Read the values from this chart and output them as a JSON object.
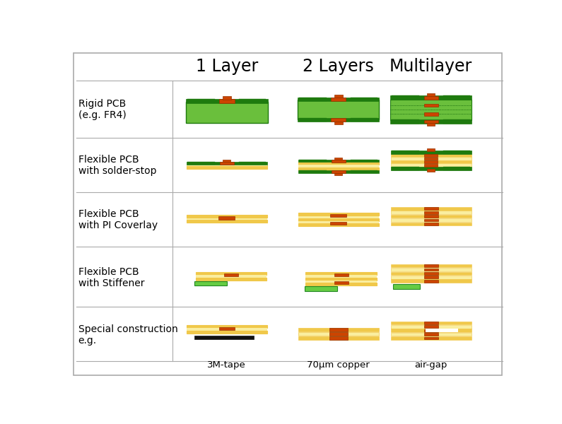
{
  "col_headers": [
    "1 Layer",
    "2 Layers",
    "Multilayer"
  ],
  "row_labels": [
    "Rigid PCB\n(e.g. FR4)",
    "Flexible PCB\nwith solder-stop",
    "Flexible PCB\nwith PI Coverlay",
    "Flexible PCB\nwith Stiffener",
    "Special construction\ne.g."
  ],
  "bottom_labels": [
    "3M-tape",
    "70μm copper",
    "air-gap"
  ],
  "colors": {
    "dark_green": "#1e7a0e",
    "light_green": "#6abf3c",
    "bright_green": "#90ee60",
    "copper": "#cc4400",
    "copper_dark": "#993300",
    "yellow": "#f0c84a",
    "light_yellow": "#faeea0",
    "tan": "#e8b840",
    "black": "#111111",
    "white": "#ffffff",
    "grid_line": "#aaaaaa",
    "bg": "#ffffff",
    "stiffener_green": "#66cc44",
    "border": "#999999"
  }
}
